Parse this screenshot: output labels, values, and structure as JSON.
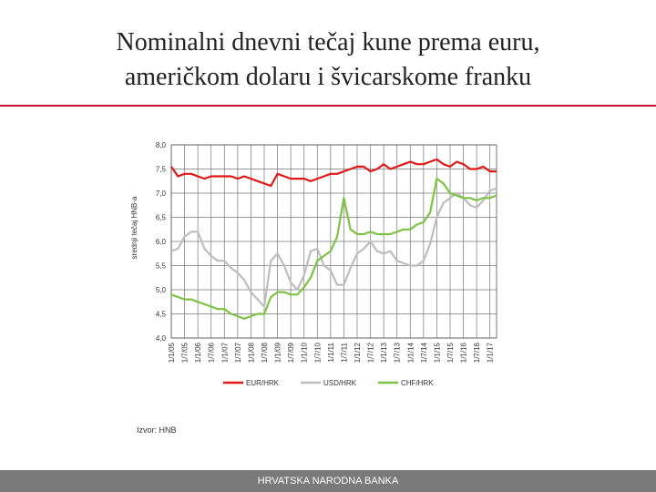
{
  "slide_title": "Nominalni dnevni tečaj kune prema euru, američkom dolaru i švicarskome franku",
  "chart_data": {
    "type": "line",
    "y_label": "srednji tečaj HNB-a",
    "categories": [
      "1/1/05",
      null,
      "1/7/05",
      null,
      "1/1/06",
      null,
      "1/7/06",
      null,
      "1/1/07",
      null,
      "1/7/07",
      null,
      "1/1/08",
      null,
      "1/7/08",
      null,
      "1/1/09",
      null,
      "1/7/09",
      null,
      "1/1/10",
      null,
      "1/7/10",
      null,
      "1/1/11",
      null,
      "1/7/11",
      null,
      "1/1/12",
      null,
      "1/7/12",
      null,
      "1/1/13",
      null,
      "1/7/13",
      null,
      "1/1/14",
      null,
      "1/7/14",
      null,
      "1/1/15",
      null,
      "1/7/15",
      null,
      "1/1/16",
      null,
      "1/7/16",
      null,
      "1/1/17",
      null
    ],
    "series": [
      {
        "name": "EUR/HRK",
        "color": "#e01818",
        "values": [
          7.55,
          7.35,
          7.4,
          7.4,
          7.35,
          7.3,
          7.35,
          7.35,
          7.35,
          7.35,
          7.3,
          7.35,
          7.3,
          7.25,
          7.2,
          7.15,
          7.4,
          7.35,
          7.3,
          7.3,
          7.3,
          7.25,
          7.3,
          7.35,
          7.4,
          7.4,
          7.45,
          7.5,
          7.55,
          7.55,
          7.45,
          7.5,
          7.6,
          7.5,
          7.55,
          7.6,
          7.65,
          7.6,
          7.6,
          7.65,
          7.7,
          7.6,
          7.55,
          7.65,
          7.6,
          7.5,
          7.5,
          7.55,
          7.45,
          7.45
        ]
      },
      {
        "name": "USD/HRK",
        "color": "#bdbdbd",
        "values": [
          5.8,
          5.85,
          6.1,
          6.2,
          6.2,
          5.85,
          5.7,
          5.6,
          5.6,
          5.45,
          5.35,
          5.2,
          4.95,
          4.8,
          4.65,
          5.6,
          5.75,
          5.5,
          5.15,
          5.0,
          5.3,
          5.8,
          5.85,
          5.5,
          5.4,
          5.1,
          5.1,
          5.45,
          5.75,
          5.85,
          6.0,
          5.8,
          5.75,
          5.8,
          5.6,
          5.55,
          5.5,
          5.5,
          5.6,
          5.95,
          6.5,
          6.8,
          6.9,
          7.0,
          6.9,
          6.75,
          6.7,
          6.85,
          7.05,
          7.1
        ]
      },
      {
        "name": "CHF/HRK",
        "color": "#7dc242",
        "values": [
          4.9,
          4.85,
          4.8,
          4.8,
          4.75,
          4.7,
          4.65,
          4.6,
          4.6,
          4.5,
          4.45,
          4.4,
          4.45,
          4.5,
          4.5,
          4.85,
          4.95,
          4.95,
          4.9,
          4.9,
          5.05,
          5.25,
          5.6,
          5.7,
          5.8,
          6.1,
          6.9,
          6.25,
          6.15,
          6.15,
          6.2,
          6.15,
          6.15,
          6.15,
          6.2,
          6.25,
          6.25,
          6.35,
          6.4,
          6.6,
          7.3,
          7.2,
          7.0,
          6.95,
          6.9,
          6.9,
          6.85,
          6.9,
          6.9,
          6.95
        ]
      }
    ],
    "ylim": [
      4,
      8
    ],
    "yticks": [
      {
        "value": 4,
        "label": "4,0"
      },
      {
        "value": 4.5,
        "label": "4,5"
      },
      {
        "value": 5,
        "label": "5,0"
      },
      {
        "value": 5.5,
        "label": "5,5"
      },
      {
        "value": 6,
        "label": "6,0"
      },
      {
        "value": 6.5,
        "label": "6,5"
      },
      {
        "value": 7,
        "label": "7,0"
      },
      {
        "value": 7.5,
        "label": "7,5"
      },
      {
        "value": 8,
        "label": "8,0"
      }
    ],
    "grid": true
  },
  "source": "Izvor: HNB",
  "footer": "HRVATSKA NARODNA BANKA"
}
